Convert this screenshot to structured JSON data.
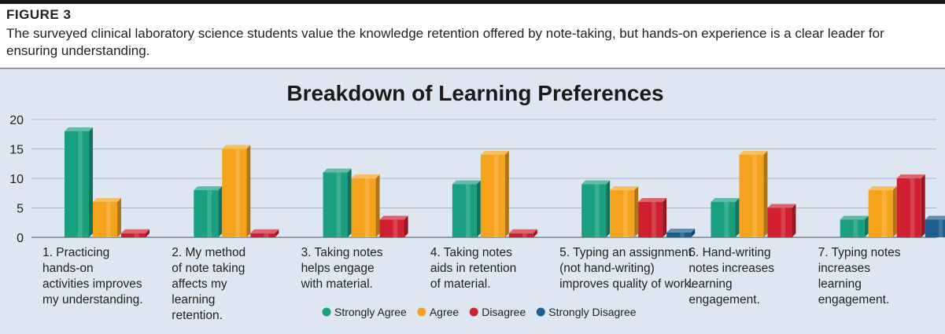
{
  "figure": {
    "label": "FIGURE 3",
    "caption": "The surveyed clinical laboratory science students value the knowledge retention offered by note-taking, but hands-on experience is a clear leader for ensuring understanding."
  },
  "chart_data": {
    "type": "bar",
    "title": "Breakdown of Learning Preferences",
    "xlabel": "",
    "ylabel": "",
    "ylim": [
      0,
      20
    ],
    "yticks": [
      0,
      5,
      10,
      15,
      20
    ],
    "grid": true,
    "legend": "bottom-center",
    "categories": [
      [
        "1. Practicing",
        "hands-on",
        "activities improves",
        "my understanding."
      ],
      [
        "2. My method",
        "of note taking",
        "affects my",
        "learning",
        "retention."
      ],
      [
        "3. Taking notes",
        "helps engage",
        "with material."
      ],
      [
        "4. Taking notes",
        "aids in retention",
        "of material."
      ],
      [
        "5. Typing an assignment",
        "(not hand-writing)",
        "improves quality of work."
      ],
      [
        "6. Hand-writing",
        "notes increases",
        "learning",
        "engagement."
      ],
      [
        "7. Typing notes",
        "increases",
        "learning",
        "engagement."
      ]
    ],
    "series": [
      {
        "name": "Strongly Agree",
        "color": "#1aa07e",
        "values": [
          18,
          8,
          11,
          9,
          9,
          6,
          3
        ]
      },
      {
        "name": "Agree",
        "color": "#f5a31c",
        "values": [
          6,
          15,
          10,
          14,
          8,
          14,
          8
        ]
      },
      {
        "name": "Disagree",
        "color": "#d0202f",
        "values": [
          0.7,
          0.7,
          3,
          0.7,
          6,
          5,
          10
        ]
      },
      {
        "name": "Strongly Disagree",
        "color": "#1e5d8f",
        "values": [
          0,
          0,
          0,
          0,
          0.8,
          0,
          3
        ]
      }
    ]
  }
}
